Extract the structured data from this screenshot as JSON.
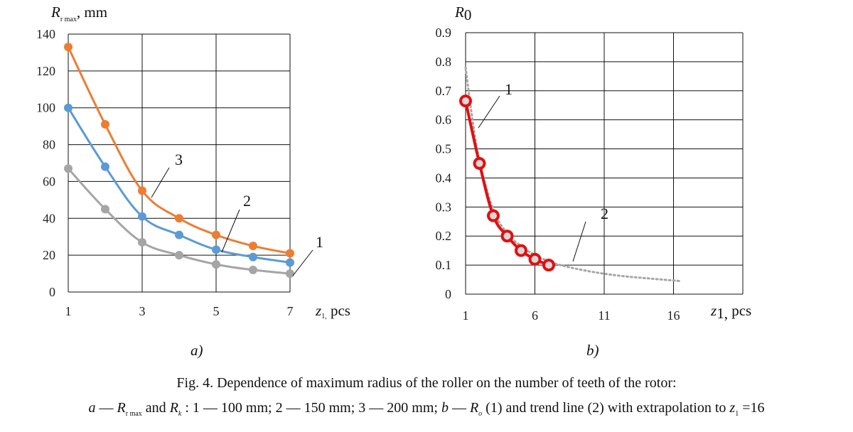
{
  "chart_data": [
    {
      "type": "line",
      "panel_label": "a)",
      "ylabel": "R",
      "ylabel_sub": "r max",
      "ylabel_unit": ", mm",
      "xlabel": "z",
      "xlabel_sub": "1,",
      "xlabel_unit": " pcs",
      "xlim": [
        1,
        7
      ],
      "ylim": [
        0,
        140
      ],
      "xticks": [
        "1",
        "3",
        "5",
        "7"
      ],
      "yticks": [
        "0",
        "20",
        "40",
        "60",
        "80",
        "100",
        "120",
        "140"
      ],
      "grid": true,
      "x": [
        1,
        2,
        3,
        4,
        5,
        6,
        7
      ],
      "series": [
        {
          "name": "1",
          "color": "#a5a5a5",
          "values": [
            67,
            45,
            27,
            20,
            15,
            12,
            10
          ]
        },
        {
          "name": "2",
          "color": "#5b9bd5",
          "values": [
            100,
            68,
            41,
            31,
            23,
            19,
            16
          ]
        },
        {
          "name": "3",
          "color": "#ed7d31",
          "values": [
            133,
            91,
            55,
            40,
            31,
            25,
            21
          ]
        }
      ]
    },
    {
      "type": "line",
      "panel_label": "b)",
      "ylabel": "R",
      "ylabel_sub": "0",
      "xlabel": "z",
      "xlabel_sub": "1,",
      "xlabel_unit": "  pcs",
      "xlim": [
        1,
        21
      ],
      "ylim": [
        0,
        0.9
      ],
      "xticks": [
        "1",
        "6",
        "11",
        "16"
      ],
      "yticks": [
        "0",
        "0.1",
        "0.2",
        "0.3",
        "0.4",
        "0.5",
        "0.6",
        "0.7",
        "0.8",
        "0.9"
      ],
      "grid": true,
      "series": [
        {
          "name": "1",
          "color": "#e01010",
          "x": [
            1,
            2,
            3,
            4,
            5,
            6,
            7
          ],
          "values": [
            0.665,
            0.45,
            0.27,
            0.2,
            0.15,
            0.12,
            0.1
          ]
        },
        {
          "name": "2",
          "color": "#a5a5a5",
          "style": "dotted",
          "x": [
            1,
            1.5,
            2,
            3,
            4,
            5,
            6,
            7,
            8,
            10,
            12,
            14,
            16.5
          ],
          "values": [
            0.78,
            0.6,
            0.46,
            0.29,
            0.21,
            0.165,
            0.135,
            0.113,
            0.098,
            0.078,
            0.064,
            0.055,
            0.045
          ]
        }
      ]
    }
  ],
  "caption": {
    "line1": "Fig. 4. Dependence of maximum radius of the roller on the number of teeth of the rotor:",
    "line2_a": "a",
    "line2_sep1": " — ",
    "line2_R": "R",
    "line2_Rsub": "r max",
    "line2_and": " and ",
    "line2_Rk": "R",
    "line2_Rksub": "k",
    "line2_mid": " : 1 — 100 mm; 2 — 150 mm; 3 — 200 mm; ",
    "line2_b": "b",
    "line2_sep2": " — ",
    "line2_R0": "R",
    "line2_R0sub": "o",
    "line2_tail": " (1) and trend line (2) with extrapolation to ",
    "line2_z": "z",
    "line2_zsub": "1",
    "line2_end": " =16"
  }
}
